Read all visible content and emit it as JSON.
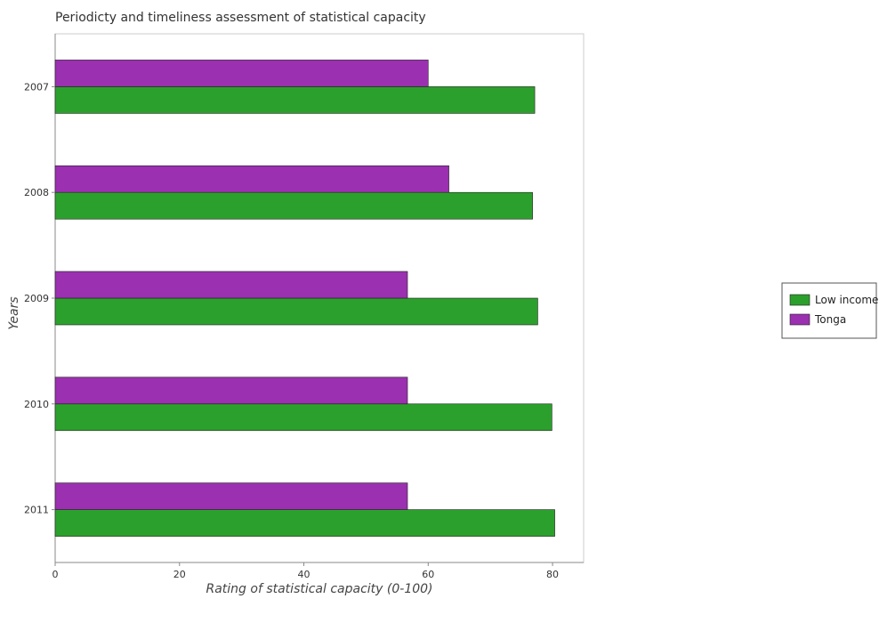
{
  "chart_data": {
    "type": "bar",
    "orientation": "horizontal",
    "title": "Periodicty and timeliness assessment of statistical capacity",
    "xlabel": "Rating of statistical capacity (0-100)",
    "ylabel": "Years",
    "xlim": [
      0,
      85
    ],
    "xticks": [
      "0",
      "20",
      "40",
      "60",
      "80"
    ],
    "categories": [
      "2007",
      "2008",
      "2009",
      "2010",
      "2011"
    ],
    "series": [
      {
        "name": "Low income",
        "color": "#2ca02c",
        "values": [
          77.14,
          76.79,
          77.62,
          79.9,
          80.36
        ]
      },
      {
        "name": "Tonga",
        "color": "#9b30b0",
        "values": [
          60.0,
          63.33,
          56.67,
          56.67,
          56.67
        ]
      }
    ],
    "legend_position": "right",
    "grid": false
  }
}
